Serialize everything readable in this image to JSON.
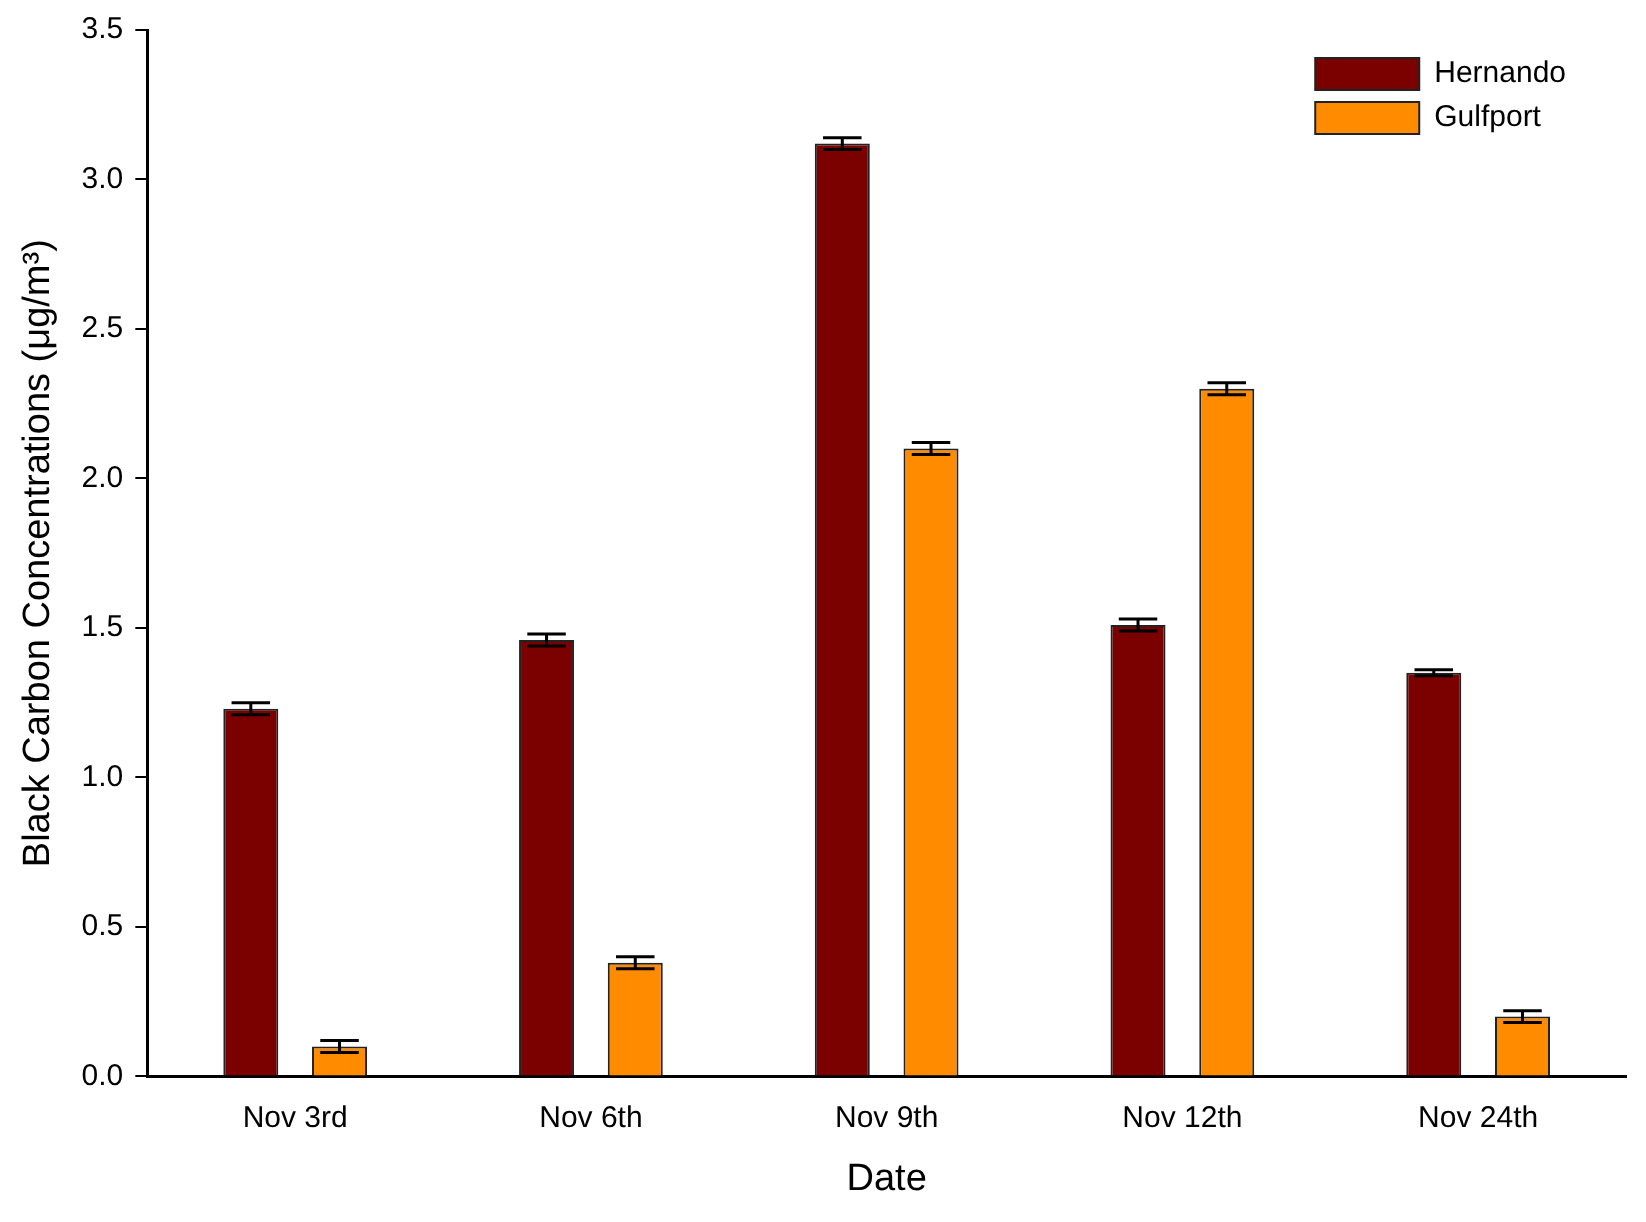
{
  "chart_data": {
    "type": "bar",
    "xlabel": "Date",
    "ylabel": "Black Carbon Concentrations (μg/m³)",
    "categories": [
      "Nov 3rd",
      "Nov 6th",
      "Nov 9th",
      "Nov 12th",
      "Nov 24th"
    ],
    "series": [
      {
        "name": "Hernando",
        "color": "#7b0000",
        "values": [
          1.23,
          1.46,
          3.12,
          1.51,
          1.35
        ],
        "errors": [
          0.02,
          0.02,
          0.02,
          0.02,
          0.01
        ]
      },
      {
        "name": "Gulfport",
        "color": "#ff8c00",
        "values": [
          0.1,
          0.38,
          2.1,
          2.3,
          0.2
        ],
        "errors": [
          0.02,
          0.02,
          0.02,
          0.02,
          0.02
        ]
      }
    ],
    "ylim": [
      0,
      3.5
    ],
    "yticks": [
      {
        "value": 0,
        "label": "0.0"
      },
      {
        "value": 0.5,
        "label": "0.5"
      },
      {
        "value": 1,
        "label": "1.0"
      },
      {
        "value": 1.5,
        "label": "1.5"
      },
      {
        "value": 2,
        "label": "2.0"
      },
      {
        "value": 2.5,
        "label": "2.5"
      },
      {
        "value": 3,
        "label": "3.0"
      },
      {
        "value": 3.5,
        "label": "3.5"
      }
    ],
    "grid": false,
    "legend": "top right"
  }
}
